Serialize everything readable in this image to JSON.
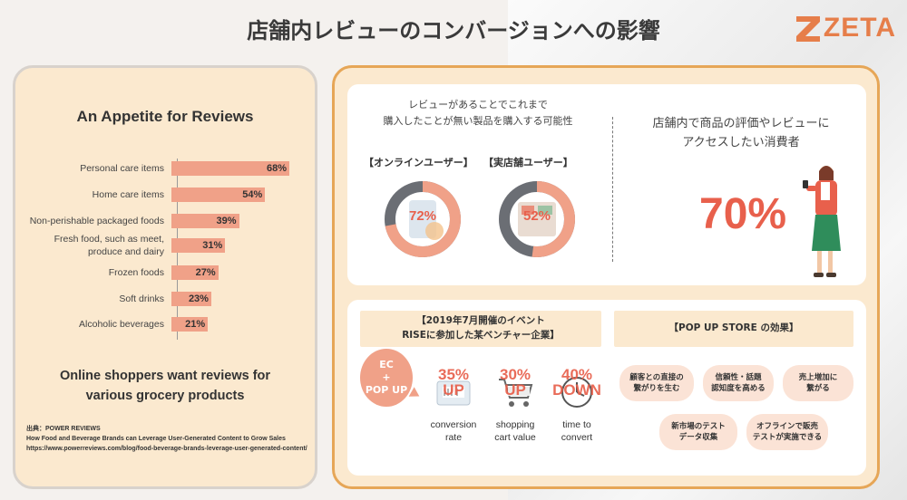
{
  "header": {
    "title": "店舗内レビューのコンバージョンへの影響",
    "logo_text": "ZETA",
    "brand_color": "#e67e4a"
  },
  "left": {
    "heading": "An Appetite for Reviews",
    "subheading_line1": "Online shoppers want reviews for",
    "subheading_line2": "various grocery products",
    "source_label": "出典：POWER REVIEWS",
    "source_title": "How Food and Beverage Brands can Leverage User-Generated Content to Grow Sales",
    "source_url": "https://www.powerreviews.com/blog/food-beverage-brands-leverage-user-generated-content/"
  },
  "chart_data": {
    "type": "bar",
    "orientation": "horizontal",
    "categories": [
      "Personal care items",
      "Home care items",
      "Non-perishable packaged foods",
      "Fresh food, such as meet, produce and dairy",
      "Frozen foods",
      "Soft drinks",
      "Alcoholic beverages"
    ],
    "values": [
      68,
      54,
      39,
      31,
      27,
      23,
      21
    ],
    "value_labels": [
      "68%",
      "54%",
      "39%",
      "31%",
      "27%",
      "23%",
      "21%"
    ],
    "title": "An Appetite for Reviews",
    "bar_color": "#f0a188"
  },
  "top_card": {
    "question_line1": "レビューがあることでこれまで",
    "question_line2": "購入したことが無い製品を購入する可能性",
    "online_label": "【オンラインユーザー】",
    "online_value": 72,
    "online_pct": "72%",
    "store_label": "【実店舗ユーザー】",
    "store_value": 52,
    "store_pct": "52%",
    "right_line1": "店舗内で商品の評価やレビューに",
    "right_line2": "アクセスしたい消費者",
    "big_pct": "70%",
    "accent": "#e8604c"
  },
  "bottom_card": {
    "event_line1": "【2019年7月開催のイベント",
    "event_line2": "RISEに参加した某ベンチャー企業】",
    "popup_heading": "【POP UP STORE の効果】",
    "ec_line1": "EC",
    "ec_line2": "+",
    "ec_line3": "POP UP",
    "stats": [
      {
        "value_line1": "35%",
        "value_line2": "UP",
        "label_line1": "conversion",
        "label_line2": "rate",
        "icon": "scanner-icon"
      },
      {
        "value_line1": "30%",
        "value_line2": "UP",
        "label_line1": "shopping",
        "label_line2": "cart value",
        "icon": "cart-icon"
      },
      {
        "value_line1": "40%",
        "value_line2": "DOWN",
        "label_line1": "time to",
        "label_line2": "convert",
        "icon": "clock-icon"
      }
    ],
    "effects": [
      {
        "line1": "顧客との直接の",
        "line2": "繋がりを生む"
      },
      {
        "line1": "信頼性・話題",
        "line2": "認知度を高める"
      },
      {
        "line1": "売上増加に",
        "line2": "繋がる"
      },
      {
        "line1": "新市場のテスト",
        "line2": "データ収集"
      },
      {
        "line1": "オフラインで販売",
        "line2": "テストが実施できる"
      }
    ]
  }
}
